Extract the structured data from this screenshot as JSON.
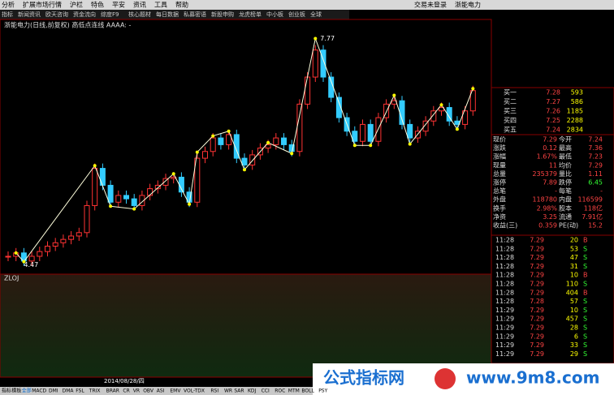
{
  "menu": {
    "items": [
      "分析",
      "扩展市场行情",
      "沪栏",
      "特色",
      "平安",
      "资讯",
      "工具",
      "帮助"
    ],
    "right": [
      "交易未登录",
      "浙能电力"
    ]
  },
  "tabs": [
    "指标",
    "新闻资讯",
    "欧天咨询",
    "资金流向",
    "综度F9",
    "核心题材",
    "每日数据",
    "私募密语",
    "新股申购",
    "龙虎榜单",
    "中小板",
    "创业板",
    "全球"
  ],
  "chart": {
    "title": "浙能电力(日线,前复权) 高低点连线 AAAA: -",
    "high_label": "7.77",
    "low_label": "4.47",
    "ylim": [
      4.25,
      7.98
    ],
    "closes": [
      4.55,
      4.6,
      4.48,
      4.55,
      4.62,
      4.7,
      4.75,
      4.8,
      4.85,
      4.9,
      5.3,
      5.85,
      5.6,
      5.35,
      5.45,
      5.4,
      5.3,
      5.45,
      5.55,
      5.6,
      5.7,
      5.72,
      5.5,
      5.35,
      6.0,
      6.1,
      6.3,
      6.2,
      6.35,
      6.0,
      5.9,
      6.05,
      6.15,
      6.2,
      6.3,
      6.2,
      6.1,
      6.8,
      7.2,
      7.6,
      7.2,
      6.9,
      6.6,
      6.4,
      6.25,
      6.5,
      6.25,
      6.6,
      6.8,
      6.85,
      6.5,
      6.3,
      6.4,
      6.55,
      6.7,
      6.75,
      6.55,
      6.5,
      6.7,
      7.0
    ],
    "zigzag": {
      "x": [
        1,
        2,
        11,
        13,
        16,
        21,
        23,
        24,
        26,
        28,
        30,
        33,
        36,
        39,
        44,
        46,
        49,
        51,
        55,
        57,
        59
      ],
      "values": [
        4.6,
        4.47,
        5.89,
        5.29,
        5.25,
        5.77,
        5.32,
        6.09,
        6.33,
        6.4,
        5.83,
        6.23,
        6.07,
        7.77,
        6.19,
        6.19,
        6.93,
        6.21,
        6.79,
        6.43,
        7.03
      ]
    }
  },
  "indicator": {
    "name": "ZLOJ"
  },
  "date_label": "2014/08/28/四",
  "order_book": [
    [
      "买一",
      "7.28",
      "593"
    ],
    [
      "买二",
      "7.27",
      "586"
    ],
    [
      "买三",
      "7.26",
      "1185"
    ],
    [
      "买四",
      "7.25",
      "2288"
    ],
    [
      "买五",
      "7.24",
      "2834"
    ]
  ],
  "quote": [
    [
      "现价",
      "7.29",
      "今开",
      "7.24"
    ],
    [
      "涨跌",
      "0.12",
      "最高",
      "7.36"
    ],
    [
      "涨幅",
      "1.67%",
      "最低",
      "7.23"
    ],
    [
      "现量",
      "11",
      "均价",
      "7.29"
    ],
    [
      "总量",
      "235379",
      "量比",
      "1.11"
    ],
    [
      "涨停",
      "7.89",
      "跌停",
      "6.45"
    ],
    [
      "总笔",
      "-",
      "每笔",
      "-"
    ],
    [
      "外盘",
      "118780",
      "内盘",
      "116599"
    ],
    [
      "换手",
      "2.98%",
      "股本",
      "118亿"
    ],
    [
      "净资",
      "3.25",
      "流通",
      "7.91亿"
    ],
    [
      "收益(三)",
      "0.359",
      "PE(动)",
      "15.2"
    ]
  ],
  "trades": [
    [
      "11:28",
      "7.29",
      "20",
      "B"
    ],
    [
      "11:28",
      "7.29",
      "53",
      "S"
    ],
    [
      "11:28",
      "7.29",
      "47",
      "S"
    ],
    [
      "11:28",
      "7.29",
      "31",
      "S"
    ],
    [
      "11:28",
      "7.29",
      "10",
      "B"
    ],
    [
      "11:28",
      "7.29",
      "110",
      "S"
    ],
    [
      "11:28",
      "7.29",
      "404",
      "B"
    ],
    [
      "11:28",
      "7.28",
      "57",
      "S"
    ],
    [
      "11:29",
      "7.29",
      "10",
      "S"
    ],
    [
      "11:29",
      "7.29",
      "457",
      "S"
    ],
    [
      "11:29",
      "7.29",
      "28",
      "S"
    ],
    [
      "11:29",
      "7.29",
      "6",
      "S"
    ],
    [
      "11:29",
      "7.29",
      "33",
      "S"
    ],
    [
      "11:29",
      "7.29",
      "29",
      "S"
    ]
  ],
  "bottom_tabs": [
    "指标",
    "模板",
    "全部",
    "MACD",
    "DMI",
    "DMA",
    "FSL",
    "TRIX",
    "BRAR",
    "CR",
    "VR",
    "OBV",
    "ASI",
    "EMV",
    "VOL-TDX",
    "RSI",
    "WR",
    "SAR",
    "KDJ",
    "CCI",
    "ROC",
    "MTM",
    "BOLL",
    "PSY"
  ],
  "watermark": {
    "site": "公式指标网",
    "url": "www.9m8.com"
  }
}
